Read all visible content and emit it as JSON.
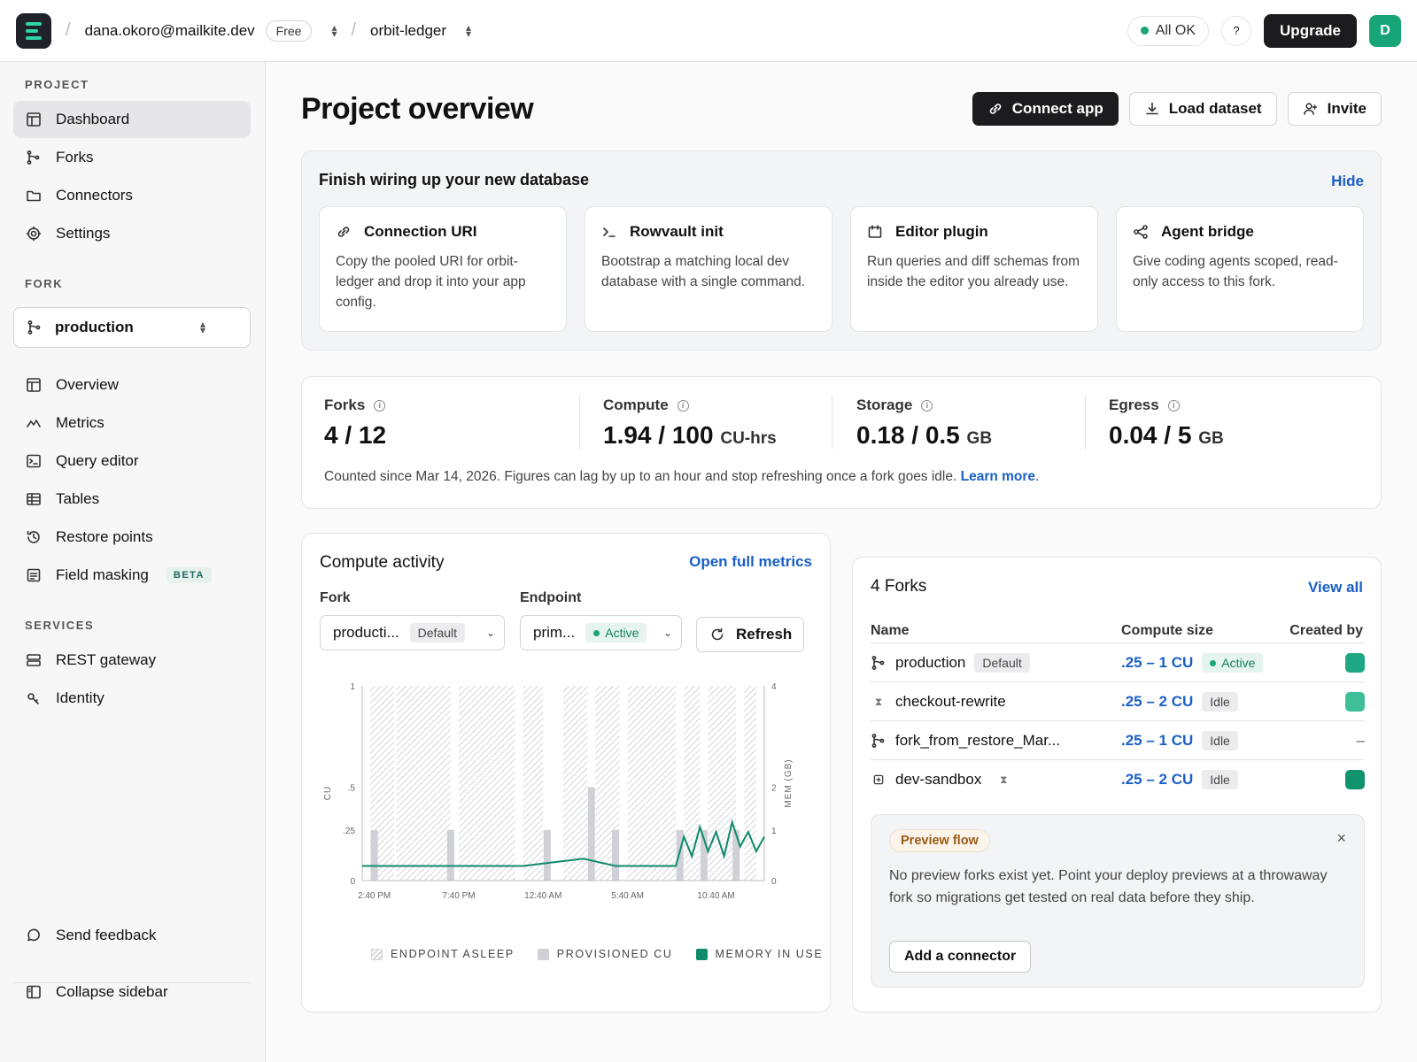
{
  "topbar": {
    "account": "dana.okoro@mailkite.dev",
    "plan": "Free",
    "project": "orbit-ledger",
    "status": "All OK",
    "help": "?",
    "upgrade": "Upgrade",
    "avatar_initial": "D"
  },
  "sidebar": {
    "project_label": "PROJECT",
    "project_items": [
      {
        "label": "Dashboard",
        "icon": "dashboard-icon"
      },
      {
        "label": "Forks",
        "icon": "fork-icon"
      },
      {
        "label": "Connectors",
        "icon": "folder-icon"
      },
      {
        "label": "Settings",
        "icon": "gear-icon"
      }
    ],
    "fork_label": "FORK",
    "fork_selected": "production",
    "fork_items": [
      {
        "label": "Overview",
        "icon": "layout-icon"
      },
      {
        "label": "Metrics",
        "icon": "metrics-icon"
      },
      {
        "label": "Query editor",
        "icon": "terminal-icon"
      },
      {
        "label": "Tables",
        "icon": "table-icon"
      },
      {
        "label": "Restore points",
        "icon": "history-icon"
      },
      {
        "label": "Field masking",
        "icon": "mask-icon",
        "badge": "BETA"
      }
    ],
    "services_label": "SERVICES",
    "services_items": [
      {
        "label": "REST gateway",
        "icon": "server-icon"
      },
      {
        "label": "Identity",
        "icon": "key-icon"
      }
    ],
    "feedback": "Send feedback",
    "collapse": "Collapse sidebar"
  },
  "header": {
    "title": "Project overview",
    "connect": "Connect app",
    "load": "Load dataset",
    "invite": "Invite"
  },
  "setup": {
    "title": "Finish wiring up your new database",
    "hide": "Hide",
    "tiles": [
      {
        "title": "Connection URI",
        "icon": "link-icon",
        "body": "Copy the pooled URI for orbit-ledger and drop it into your app config."
      },
      {
        "title": "Rowvault init",
        "icon": "prompt-icon",
        "body": "Bootstrap a matching local dev database with a single command."
      },
      {
        "title": "Editor plugin",
        "icon": "plugin-icon",
        "body": "Run queries and diff schemas from inside the editor you already use."
      },
      {
        "title": "Agent bridge",
        "icon": "share-icon",
        "body": "Give coding agents scoped, read-only access to this fork."
      }
    ]
  },
  "usage": {
    "metrics": [
      {
        "label": "Forks",
        "value": "4 / 12",
        "unit": ""
      },
      {
        "label": "Compute",
        "value": "1.94 / 100",
        "unit": "CU-hrs"
      },
      {
        "label": "Storage",
        "value": "0.18 / 0.5",
        "unit": "GB"
      },
      {
        "label": "Egress",
        "value": "0.04 / 5",
        "unit": "GB"
      }
    ],
    "note": "Counted since Mar 14, 2026. Figures can lag by up to an hour and stop refreshing once a fork goes idle.",
    "learn_more": "Learn more",
    "note_end": "."
  },
  "activity": {
    "title": "Compute activity",
    "open_metrics": "Open full metrics",
    "fork_label": "Fork",
    "fork_value": "producti...",
    "fork_tag": "Default",
    "endpoint_label": "Endpoint",
    "endpoint_value": "prim...",
    "endpoint_tag": "Active",
    "refresh": "Refresh",
    "legend": [
      "ENDPOINT ASLEEP",
      "PROVISIONED CU",
      "MEMORY IN USE"
    ]
  },
  "chart_data": {
    "type": "bar",
    "y_left_label": "CU",
    "y_right_label": "MEM (GB)",
    "y_left_ticks": [
      "1",
      ".5",
      ".25",
      "0"
    ],
    "y_right_ticks": [
      "4",
      "2",
      "1",
      "0"
    ],
    "x_ticks": [
      "2:40 PM",
      "7:40 PM",
      "12:40 AM",
      "5:40 AM",
      "10:40 AM"
    ],
    "asleep_ranges": [
      [
        0.02,
        0.08
      ],
      [
        0.085,
        0.22
      ],
      [
        0.24,
        0.38
      ],
      [
        0.4,
        0.45
      ],
      [
        0.5,
        0.56
      ],
      [
        0.58,
        0.64
      ],
      [
        0.66,
        0.78
      ],
      [
        0.8,
        0.84
      ],
      [
        0.86,
        0.93
      ],
      [
        0.95,
        0.98
      ]
    ],
    "provisioned_bars": [
      {
        "x": 0.03,
        "value": 0.25
      },
      {
        "x": 0.22,
        "value": 0.25
      },
      {
        "x": 0.46,
        "value": 0.25
      },
      {
        "x": 0.57,
        "value": 0.5
      },
      {
        "x": 0.63,
        "value": 0.25
      },
      {
        "x": 0.79,
        "value": 0.25
      },
      {
        "x": 0.85,
        "value": 0.25
      },
      {
        "x": 0.93,
        "value": 0.25
      }
    ],
    "memory_series": [
      [
        0,
        0.3
      ],
      [
        0.2,
        0.3
      ],
      [
        0.4,
        0.3
      ],
      [
        0.55,
        0.45
      ],
      [
        0.63,
        0.3
      ],
      [
        0.78,
        0.3
      ],
      [
        0.8,
        0.9
      ],
      [
        0.82,
        0.5
      ],
      [
        0.84,
        1.1
      ],
      [
        0.86,
        0.6
      ],
      [
        0.88,
        1.0
      ],
      [
        0.9,
        0.5
      ],
      [
        0.92,
        1.2
      ],
      [
        0.94,
        0.7
      ],
      [
        0.96,
        1.0
      ],
      [
        0.98,
        0.6
      ],
      [
        1.0,
        0.9
      ]
    ],
    "mem_max": 4
  },
  "forks": {
    "title": "4 Forks",
    "view_all": "View all",
    "columns": [
      "Name",
      "Compute size",
      "Created by"
    ],
    "rows": [
      {
        "name": "production",
        "icon": "fork-icon",
        "tag": "Default",
        "size": ".25 – 1 CU",
        "state": "Active",
        "creator": "avatar",
        "creator_color": "#1ea783"
      },
      {
        "name": "checkout-rewrite",
        "icon": "hourglass-icon",
        "tag": "",
        "size": ".25 – 2 CU",
        "state": "Idle",
        "creator": "avatar",
        "creator_color": "#3ebf97"
      },
      {
        "name": "fork_from_restore_Mar...",
        "icon": "fork-icon",
        "tag": "",
        "size": ".25 – 1 CU",
        "state": "Idle",
        "creator": "–",
        "creator_color": ""
      },
      {
        "name": "dev-sandbox",
        "icon": "plus-box-icon",
        "tag": "",
        "size": ".25 – 2 CU",
        "state": "Idle",
        "creator": "avatar",
        "creator_color": "#11936e",
        "suffix_icon": "hourglass-icon"
      }
    ]
  },
  "preview": {
    "tag": "Preview flow",
    "close": "×",
    "body": "No preview forks exist yet. Point your deploy previews at a throwaway fork so migrations get tested on real data before they ship.",
    "button": "Add a connector"
  },
  "colors": {
    "accent_blue": "#1a5fc7",
    "brand_green": "#17a577",
    "memory_line": "#0f8a6a",
    "provisioned": "#cfd1d6"
  }
}
